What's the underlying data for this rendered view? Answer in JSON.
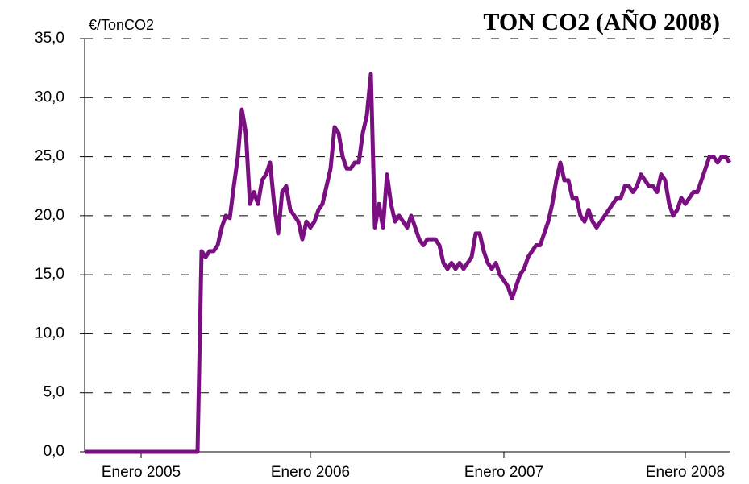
{
  "chart_data": {
    "type": "line",
    "title": "TON CO2 (AÑO 2008)",
    "y_label": "€/TonCO2",
    "color": "#7a0f82",
    "grid": true,
    "values": [
      0,
      0,
      0,
      0,
      0,
      0,
      0,
      0,
      0,
      0,
      0,
      0,
      0,
      0,
      0,
      0,
      0,
      0,
      0,
      0,
      0,
      0,
      0,
      0,
      0,
      0,
      0,
      0,
      0,
      17,
      16.5,
      17,
      17,
      17.5,
      19,
      20,
      19.8,
      22.5,
      25,
      29,
      27,
      21,
      22,
      21,
      23,
      23.5,
      24.5,
      21,
      18.5,
      22,
      22.5,
      20.5,
      20,
      19.5,
      18,
      19.5,
      19,
      19.5,
      20.5,
      21,
      22.5,
      24,
      27.5,
      27,
      25,
      24,
      24,
      24.5,
      24.5,
      27,
      28.5,
      32,
      19,
      21,
      19,
      23.5,
      21,
      19.5,
      20,
      19.5,
      19,
      20,
      19,
      18,
      17.5,
      18,
      18,
      18,
      17.5,
      16,
      15.5,
      16,
      15.5,
      16,
      15.5,
      16,
      16.5,
      18.5,
      18.5,
      17,
      16,
      15.5,
      16,
      15,
      14.5,
      14,
      13,
      14,
      15,
      15.5,
      16.5,
      17,
      17.5,
      17.5,
      18.5,
      19.5,
      21,
      23,
      24.5,
      23,
      23,
      21.5,
      21.5,
      20,
      19.5,
      20.5,
      19.5,
      19,
      19.5,
      20,
      20.5,
      21,
      21.5,
      21.5,
      22.5,
      22.5,
      22,
      22.5,
      23.5,
      23,
      22.5,
      22.5,
      22,
      23.5,
      23,
      21,
      20,
      20.5,
      21.5,
      21,
      21.5,
      22,
      22,
      23,
      24,
      25,
      25,
      24.5,
      25,
      25,
      24.5
    ],
    "xlim": [
      0,
      160
    ],
    "xticks": [
      {
        "value": 14,
        "label": "Enero 2005"
      },
      {
        "value": 56,
        "label": "Enero 2006"
      },
      {
        "value": 104,
        "label": "Enero 2007"
      },
      {
        "value": 149,
        "label": "Enero 2008"
      }
    ],
    "ylim": [
      0,
      35
    ],
    "yticks": [
      {
        "value": 0,
        "label": "0,0"
      },
      {
        "value": 5,
        "label": "5,0"
      },
      {
        "value": 10,
        "label": "10,0"
      },
      {
        "value": 15,
        "label": "15,0"
      },
      {
        "value": 20,
        "label": "20,0"
      },
      {
        "value": 25,
        "label": "25,0"
      },
      {
        "value": 30,
        "label": "30,0"
      },
      {
        "value": 35,
        "label": "35,0"
      }
    ]
  }
}
